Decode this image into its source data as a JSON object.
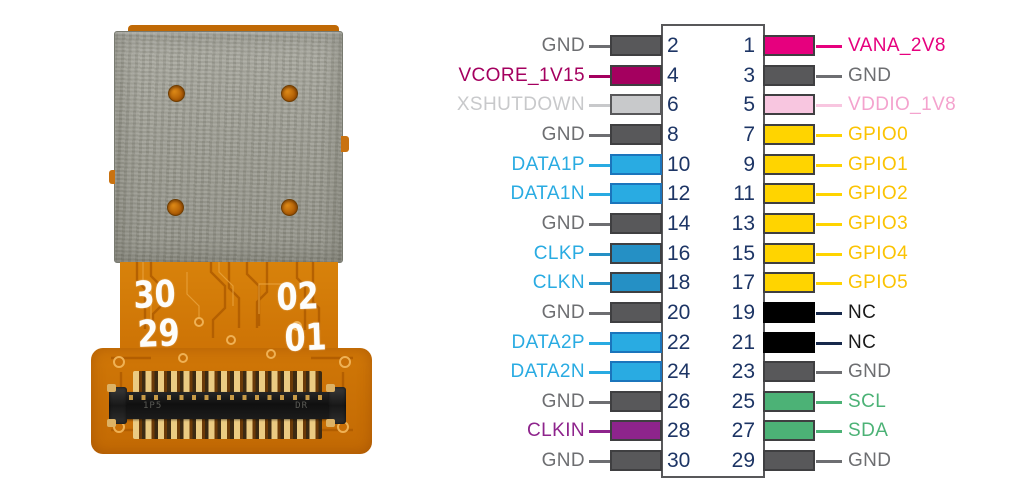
{
  "pinout": {
    "number_color": "#1D3565",
    "outline_color": "#58585A",
    "types": {
      "gnd": {
        "box": "#58585A",
        "border": "#3F3F41",
        "text": "#6D6E71",
        "line": "#6D6E71"
      },
      "vana": {
        "box": "#E6007E",
        "border": "#3F3F41",
        "text": "#E6007E",
        "line": "#E6007E"
      },
      "vcore": {
        "box": "#A4005F",
        "border": "#3F3F41",
        "text": "#A4005F",
        "line": "#A4005F"
      },
      "xshut": {
        "box": "#C8C9CB",
        "border": "#58585A",
        "text": "#C8C9CB",
        "line": "#C8C9CB"
      },
      "vddio": {
        "box": "#F8C6E0",
        "border": "#3F3F41",
        "text": "#F4A3CE",
        "line": "#F8C6E0"
      },
      "gpio": {
        "box": "#FFD400",
        "border": "#3F3F41",
        "text": "#FBC303",
        "line": "#FFD400"
      },
      "data": {
        "box": "#29ABE2",
        "border": "#1B75BC",
        "text": "#29ABE2",
        "line": "#29ABE2"
      },
      "clk": {
        "box": "#2590C5",
        "border": "#3F3F41",
        "text": "#29ABE2",
        "line": "#2590C5"
      },
      "nc": {
        "box": "#000000",
        "border": "#000000",
        "text": "#1A1A1A",
        "line": "#17294B"
      },
      "i2c": {
        "box": "#4CB276",
        "border": "#3F3F41",
        "text": "#4CB276",
        "line": "#4CB276"
      },
      "clkin": {
        "box": "#8E248C",
        "border": "#3F3F41",
        "text": "#8E248C",
        "line": "#8E248C"
      }
    },
    "rows": [
      {
        "left": {
          "pin": "2",
          "label": "GND",
          "type": "gnd"
        },
        "right": {
          "pin": "1",
          "label": "VANA_2V8",
          "type": "vana"
        }
      },
      {
        "left": {
          "pin": "4",
          "label": "VCORE_1V15",
          "type": "vcore"
        },
        "right": {
          "pin": "3",
          "label": "GND",
          "type": "gnd"
        }
      },
      {
        "left": {
          "pin": "6",
          "label": "XSHUTDOWN",
          "type": "xshut"
        },
        "right": {
          "pin": "5",
          "label": "VDDIO_1V8",
          "type": "vddio"
        }
      },
      {
        "left": {
          "pin": "8",
          "label": "GND",
          "type": "gnd"
        },
        "right": {
          "pin": "7",
          "label": "GPIO0",
          "type": "gpio"
        }
      },
      {
        "left": {
          "pin": "10",
          "label": "DATA1P",
          "type": "data"
        },
        "right": {
          "pin": "9",
          "label": "GPIO1",
          "type": "gpio"
        }
      },
      {
        "left": {
          "pin": "12",
          "label": "DATA1N",
          "type": "data"
        },
        "right": {
          "pin": "11",
          "label": "GPIO2",
          "type": "gpio"
        }
      },
      {
        "left": {
          "pin": "14",
          "label": "GND",
          "type": "gnd"
        },
        "right": {
          "pin": "13",
          "label": "GPIO3",
          "type": "gpio"
        }
      },
      {
        "left": {
          "pin": "16",
          "label": "CLKP",
          "type": "clk"
        },
        "right": {
          "pin": "15",
          "label": "GPIO4",
          "type": "gpio"
        }
      },
      {
        "left": {
          "pin": "18",
          "label": "CLKN",
          "type": "clk"
        },
        "right": {
          "pin": "17",
          "label": "GPIO5",
          "type": "gpio"
        }
      },
      {
        "left": {
          "pin": "20",
          "label": "GND",
          "type": "gnd"
        },
        "right": {
          "pin": "19",
          "label": "NC",
          "type": "nc"
        }
      },
      {
        "left": {
          "pin": "22",
          "label": "DATA2P",
          "type": "data"
        },
        "right": {
          "pin": "21",
          "label": "NC",
          "type": "nc"
        }
      },
      {
        "left": {
          "pin": "24",
          "label": "DATA2N",
          "type": "data"
        },
        "right": {
          "pin": "23",
          "label": "GND",
          "type": "gnd"
        }
      },
      {
        "left": {
          "pin": "26",
          "label": "GND",
          "type": "gnd"
        },
        "right": {
          "pin": "25",
          "label": "SCL",
          "type": "i2c"
        }
      },
      {
        "left": {
          "pin": "28",
          "label": "CLKIN",
          "type": "clkin"
        },
        "right": {
          "pin": "27",
          "label": "SDA",
          "type": "i2c"
        }
      },
      {
        "left": {
          "pin": "30",
          "label": "GND",
          "type": "gnd"
        },
        "right": {
          "pin": "29",
          "label": "GND",
          "type": "gnd"
        }
      }
    ]
  },
  "module": {
    "silkscreen": {
      "top_left": "30",
      "top_right": "02",
      "bottom_left": "29",
      "bottom_right": "01"
    },
    "connector_marks": {
      "left": "1P5",
      "right": "DR"
    },
    "colors": {
      "flex_orange": "#D07707",
      "shield_gray": "#9A9A90",
      "connector_black": "#161616",
      "pin_gold": "#EBCB82"
    }
  }
}
